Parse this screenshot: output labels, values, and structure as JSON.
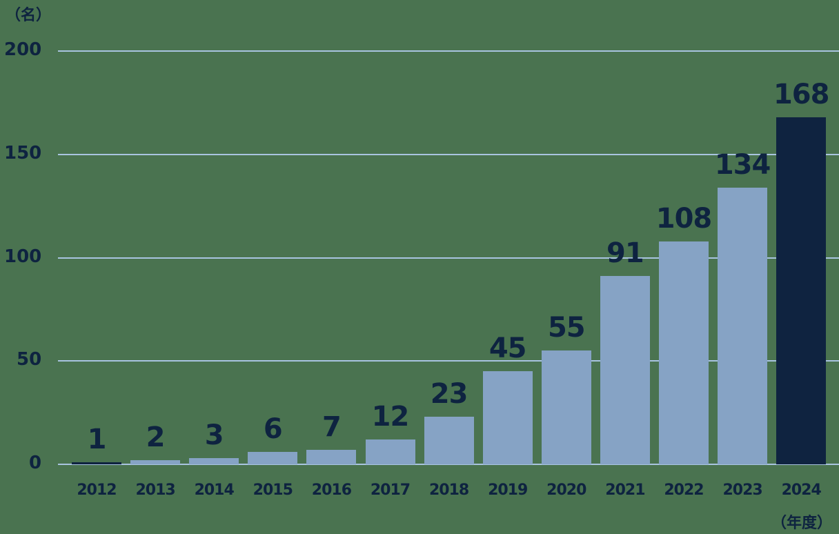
{
  "chart_data": {
    "type": "bar",
    "title": "",
    "ylabel": "（名）",
    "xlabel": "（年度）",
    "ylim": [
      0,
      200
    ],
    "yticks": [
      0,
      50,
      100,
      150,
      200
    ],
    "grid": true,
    "categories": [
      "2012",
      "2013",
      "2014",
      "2015",
      "2016",
      "2017",
      "2018",
      "2019",
      "2020",
      "2021",
      "2022",
      "2023",
      "2024"
    ],
    "values": [
      1,
      2,
      3,
      6,
      7,
      12,
      23,
      45,
      55,
      91,
      108,
      134,
      168
    ],
    "highlight_index": 12,
    "colors": {
      "bar": "#86a3c5",
      "highlight": "#0f2340",
      "grid": "#a9c4e0",
      "background": "#4a7350",
      "text": "#0e2340"
    }
  },
  "labels": {
    "y_unit": "（名）",
    "x_unit": "（年度）",
    "yticks": [
      "200",
      "150",
      "100",
      "50",
      "0"
    ]
  }
}
